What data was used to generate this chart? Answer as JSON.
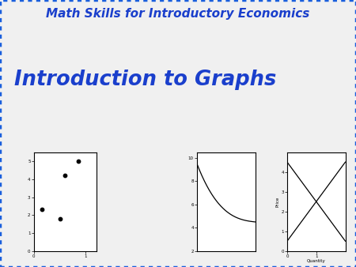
{
  "bg_color": "#f0f0f0",
  "panel_bg": "#ffffff",
  "border_color": "#1a5fdd",
  "title1": "Math Skills for Introductory Economics",
  "title2": "Introduction to Graphs",
  "title1_color": "#1a3fcc",
  "title2_color": "#1a3fcc",
  "scatter_x": [
    0.15,
    0.6,
    0.5,
    0.85
  ],
  "scatter_y": [
    2.3,
    4.2,
    1.8,
    5.0
  ],
  "scatter_xlim": [
    0,
    1.2
  ],
  "scatter_ylim": [
    0,
    5.5
  ],
  "scatter_xticks": [
    0,
    1
  ],
  "scatter_yticks": [
    0,
    1,
    2,
    3,
    4,
    5
  ],
  "curve_ylim": [
    2,
    10.5
  ],
  "curve_yticks": [
    2,
    4,
    6,
    8,
    10
  ],
  "cross_xlim": [
    0,
    2
  ],
  "cross_ylim": [
    0,
    5
  ],
  "cross_yticks": [
    0,
    1,
    2,
    3,
    4
  ],
  "cross_xlabel": "Quantity",
  "cross_ylabel": "Price"
}
